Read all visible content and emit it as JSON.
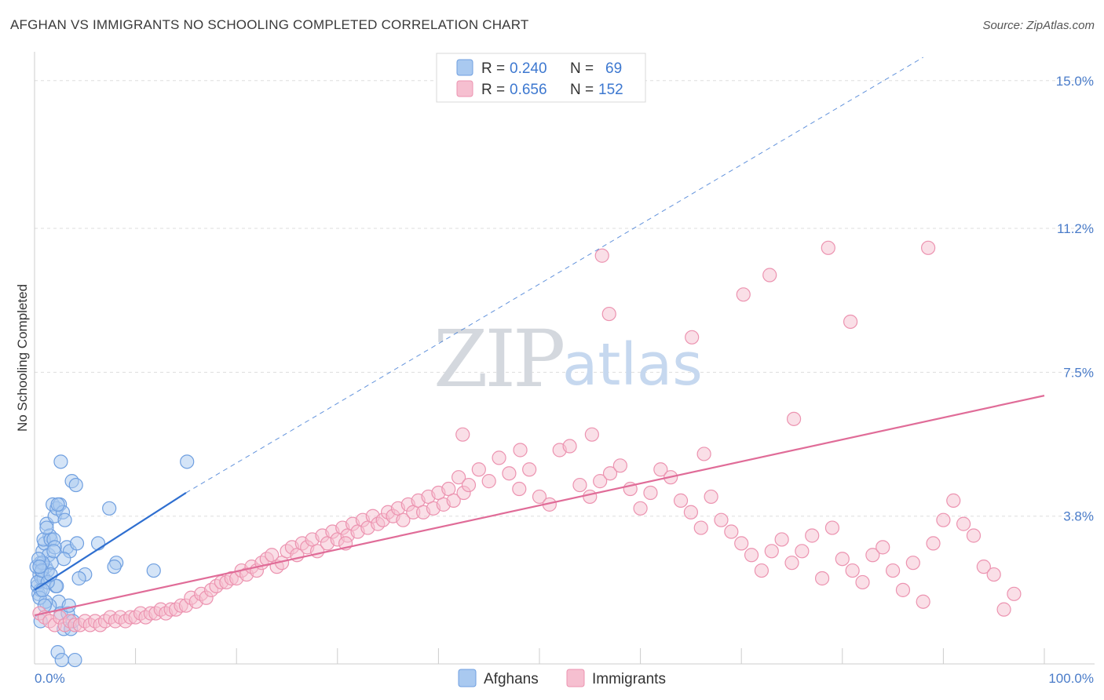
{
  "title": "AFGHAN VS IMMIGRANTS NO SCHOOLING COMPLETED CORRELATION CHART",
  "source": "Source: ZipAtlas.com",
  "watermark": {
    "zip": "ZIP",
    "atlas": "atlas"
  },
  "colors": {
    "afghans_fill": "#a9c9f0",
    "afghans_stroke": "#6f9fe0",
    "afghans_line": "#2f6fd0",
    "immigrants_fill": "#f6bfd0",
    "immigrants_stroke": "#ec93b0",
    "immigrants_line": "#e06c98",
    "grid": "#dddddd",
    "tick_label": "#4a7cc9"
  },
  "legend": {
    "rows": [
      {
        "r_label": "R =",
        "r_value": "0.240",
        "n_label": "N =",
        "n_value": "69"
      },
      {
        "r_label": "R =",
        "r_value": "0.656",
        "n_label": "N =",
        "n_value": "152"
      }
    ]
  },
  "bottom_legend": {
    "afghans": "Afghans",
    "immigrants": "Immigrants"
  },
  "chart_data": {
    "type": "scatter",
    "title": "AFGHAN VS IMMIGRANTS NO SCHOOLING COMPLETED CORRELATION CHART",
    "xlabel": "",
    "ylabel": "No Schooling Completed",
    "xlim": [
      0,
      100
    ],
    "ylim": [
      0,
      15.5
    ],
    "y_ticks": [
      3.8,
      7.5,
      11.2,
      15.0
    ],
    "y_tick_labels": [
      "3.8%",
      "7.5%",
      "11.2%",
      "15.0%"
    ],
    "x_tick_labels": [
      "0.0%",
      "100.0%"
    ],
    "legend_position": "top-center",
    "series": [
      {
        "name": "Afghans",
        "r": 0.24,
        "n": 69,
        "trend": {
          "x0": 0,
          "y0": 1.9,
          "x1": 15,
          "y1": 4.4,
          "solid_until": 15,
          "dashed_to": 88,
          "dashed_y": 15.6
        },
        "points": [
          [
            0.3,
            2.0
          ],
          [
            0.5,
            2.3
          ],
          [
            0.6,
            2.6
          ],
          [
            0.4,
            1.8
          ],
          [
            0.8,
            2.9
          ],
          [
            1.0,
            3.1
          ],
          [
            1.2,
            3.6
          ],
          [
            1.5,
            3.3
          ],
          [
            0.9,
            3.2
          ],
          [
            0.7,
            2.2
          ],
          [
            1.1,
            2.5
          ],
          [
            1.4,
            2.8
          ],
          [
            1.8,
            4.1
          ],
          [
            2.0,
            3.8
          ],
          [
            2.2,
            4.0
          ],
          [
            2.5,
            4.1
          ],
          [
            2.8,
            3.9
          ],
          [
            3.0,
            3.7
          ],
          [
            1.6,
            3.2
          ],
          [
            1.3,
            2.4
          ],
          [
            0.2,
            2.5
          ],
          [
            0.6,
            1.9
          ],
          [
            0.9,
            2.2
          ],
          [
            1.7,
            2.6
          ],
          [
            2.1,
            2.0
          ],
          [
            2.4,
            1.6
          ],
          [
            2.6,
            1.3
          ],
          [
            2.9,
            0.9
          ],
          [
            3.3,
            1.3
          ],
          [
            3.6,
            0.9
          ],
          [
            4.0,
            0.1
          ],
          [
            2.3,
            0.3
          ],
          [
            2.7,
            0.1
          ],
          [
            1.5,
            1.5
          ],
          [
            1.1,
            1.6
          ],
          [
            0.5,
            1.7
          ],
          [
            0.8,
            2.6
          ],
          [
            1.9,
            3.2
          ],
          [
            3.2,
            3.0
          ],
          [
            3.5,
            2.9
          ],
          [
            4.2,
            3.1
          ],
          [
            3.7,
            4.7
          ],
          [
            4.1,
            4.6
          ],
          [
            2.6,
            5.2
          ],
          [
            7.4,
            4.0
          ],
          [
            11.8,
            2.4
          ],
          [
            8.1,
            2.6
          ],
          [
            5.0,
            2.3
          ],
          [
            4.4,
            2.2
          ],
          [
            2.2,
            2.0
          ],
          [
            0.4,
            2.7
          ],
          [
            0.3,
            2.1
          ],
          [
            0.7,
            2.4
          ],
          [
            1.0,
            1.5
          ],
          [
            1.3,
            2.1
          ],
          [
            2.0,
            3.0
          ],
          [
            2.9,
            2.7
          ],
          [
            3.4,
            1.5
          ],
          [
            3.8,
            1.1
          ],
          [
            0.6,
            1.1
          ],
          [
            15.1,
            5.2
          ],
          [
            7.9,
            2.5
          ],
          [
            6.3,
            3.1
          ],
          [
            1.2,
            3.5
          ],
          [
            1.6,
            2.3
          ],
          [
            0.8,
            1.9
          ],
          [
            2.3,
            4.1
          ],
          [
            1.9,
            2.9
          ],
          [
            0.5,
            2.5
          ]
        ]
      },
      {
        "name": "Immigrants",
        "r": 0.656,
        "n": 152,
        "trend": {
          "x0": 0,
          "y0": 1.25,
          "x1": 100,
          "y1": 6.9
        },
        "points": [
          [
            0.5,
            1.3
          ],
          [
            1.0,
            1.2
          ],
          [
            1.5,
            1.1
          ],
          [
            2.0,
            1.0
          ],
          [
            2.5,
            1.2
          ],
          [
            3.0,
            1.0
          ],
          [
            3.5,
            1.1
          ],
          [
            4.0,
            1.0
          ],
          [
            4.5,
            1.0
          ],
          [
            5.0,
            1.1
          ],
          [
            5.5,
            1.0
          ],
          [
            6.0,
            1.1
          ],
          [
            6.5,
            1.0
          ],
          [
            7.0,
            1.1
          ],
          [
            7.5,
            1.2
          ],
          [
            8.0,
            1.1
          ],
          [
            8.5,
            1.2
          ],
          [
            9.0,
            1.1
          ],
          [
            9.5,
            1.2
          ],
          [
            10.0,
            1.2
          ],
          [
            10.5,
            1.3
          ],
          [
            11.0,
            1.2
          ],
          [
            11.5,
            1.3
          ],
          [
            12.0,
            1.3
          ],
          [
            12.5,
            1.4
          ],
          [
            13.0,
            1.3
          ],
          [
            13.5,
            1.4
          ],
          [
            14.0,
            1.4
          ],
          [
            14.5,
            1.5
          ],
          [
            15.0,
            1.5
          ],
          [
            15.5,
            1.7
          ],
          [
            16.0,
            1.6
          ],
          [
            16.5,
            1.8
          ],
          [
            17.0,
            1.7
          ],
          [
            17.5,
            1.9
          ],
          [
            18.0,
            2.0
          ],
          [
            18.5,
            2.1
          ],
          [
            19.0,
            2.1
          ],
          [
            19.5,
            2.2
          ],
          [
            20.0,
            2.2
          ],
          [
            20.5,
            2.4
          ],
          [
            21.0,
            2.3
          ],
          [
            21.5,
            2.5
          ],
          [
            22.0,
            2.4
          ],
          [
            22.5,
            2.6
          ],
          [
            23.0,
            2.7
          ],
          [
            23.5,
            2.8
          ],
          [
            24.0,
            2.5
          ],
          [
            24.5,
            2.6
          ],
          [
            25.0,
            2.9
          ],
          [
            25.5,
            3.0
          ],
          [
            26.0,
            2.8
          ],
          [
            26.5,
            3.1
          ],
          [
            27.0,
            3.0
          ],
          [
            27.5,
            3.2
          ],
          [
            28.0,
            2.9
          ],
          [
            28.5,
            3.3
          ],
          [
            29.0,
            3.1
          ],
          [
            29.5,
            3.4
          ],
          [
            30.0,
            3.2
          ],
          [
            30.5,
            3.5
          ],
          [
            31.0,
            3.3
          ],
          [
            31.5,
            3.6
          ],
          [
            32.0,
            3.4
          ],
          [
            32.5,
            3.7
          ],
          [
            33.0,
            3.5
          ],
          [
            33.5,
            3.8
          ],
          [
            34.0,
            3.6
          ],
          [
            34.5,
            3.7
          ],
          [
            35.0,
            3.9
          ],
          [
            35.5,
            3.8
          ],
          [
            36.0,
            4.0
          ],
          [
            36.5,
            3.7
          ],
          [
            37.0,
            4.1
          ],
          [
            37.5,
            3.9
          ],
          [
            38.0,
            4.2
          ],
          [
            38.5,
            3.9
          ],
          [
            39.0,
            4.3
          ],
          [
            39.5,
            4.0
          ],
          [
            40.0,
            4.4
          ],
          [
            40.5,
            4.1
          ],
          [
            41.0,
            4.5
          ],
          [
            41.5,
            4.2
          ],
          [
            42.0,
            4.8
          ],
          [
            42.5,
            4.4
          ],
          [
            43.0,
            4.6
          ],
          [
            44.0,
            5.0
          ],
          [
            45.0,
            4.7
          ],
          [
            46.0,
            5.3
          ],
          [
            47.0,
            4.9
          ],
          [
            48.0,
            4.5
          ],
          [
            49.0,
            5.0
          ],
          [
            50.0,
            4.3
          ],
          [
            51.0,
            4.1
          ],
          [
            52.0,
            5.5
          ],
          [
            53.0,
            5.6
          ],
          [
            54.0,
            4.6
          ],
          [
            55.0,
            4.3
          ],
          [
            56.0,
            4.7
          ],
          [
            57.0,
            4.9
          ],
          [
            58.0,
            5.1
          ],
          [
            59.0,
            4.5
          ],
          [
            60.0,
            4.0
          ],
          [
            61.0,
            4.4
          ],
          [
            62.0,
            5.0
          ],
          [
            63.0,
            4.8
          ],
          [
            64.0,
            4.2
          ],
          [
            65.0,
            3.9
          ],
          [
            66.0,
            3.5
          ],
          [
            67.0,
            4.3
          ],
          [
            68.0,
            3.7
          ],
          [
            69.0,
            3.4
          ],
          [
            70.0,
            3.1
          ],
          [
            71.0,
            2.8
          ],
          [
            72.0,
            2.4
          ],
          [
            73.0,
            2.9
          ],
          [
            74.0,
            3.2
          ],
          [
            75.0,
            2.6
          ],
          [
            76.0,
            2.9
          ],
          [
            77.0,
            3.3
          ],
          [
            78.0,
            2.2
          ],
          [
            79.0,
            3.5
          ],
          [
            80.0,
            2.7
          ],
          [
            81.0,
            2.4
          ],
          [
            82.0,
            2.1
          ],
          [
            83.0,
            2.8
          ],
          [
            84.0,
            3.0
          ],
          [
            85.0,
            2.4
          ],
          [
            86.0,
            1.9
          ],
          [
            87.0,
            2.6
          ],
          [
            88.0,
            1.6
          ],
          [
            89.0,
            3.1
          ],
          [
            90.0,
            3.7
          ],
          [
            91.0,
            4.2
          ],
          [
            92.0,
            3.6
          ],
          [
            93.0,
            3.3
          ],
          [
            94.0,
            2.5
          ],
          [
            95.0,
            2.3
          ],
          [
            96.0,
            1.4
          ],
          [
            97.0,
            1.8
          ],
          [
            56.2,
            10.5
          ],
          [
            70.2,
            9.5
          ],
          [
            72.8,
            10.0
          ],
          [
            65.1,
            8.4
          ],
          [
            56.9,
            9.0
          ],
          [
            78.6,
            10.7
          ],
          [
            88.5,
            10.7
          ],
          [
            80.8,
            8.8
          ],
          [
            66.3,
            5.4
          ],
          [
            75.2,
            6.3
          ],
          [
            55.2,
            5.9
          ],
          [
            48.1,
            5.5
          ],
          [
            42.4,
            5.9
          ],
          [
            30.8,
            3.1
          ]
        ]
      }
    ]
  }
}
